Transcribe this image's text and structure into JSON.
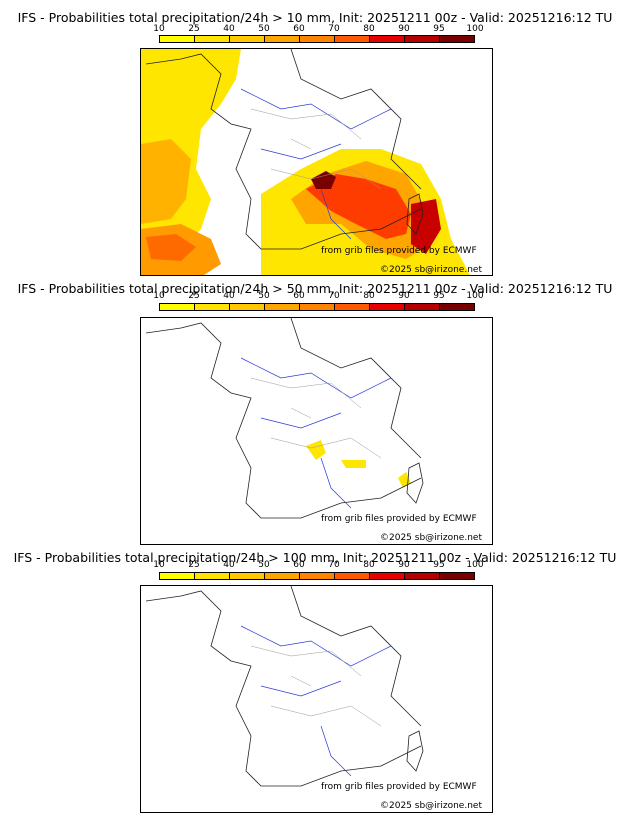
{
  "panels": [
    {
      "title": "IFS - Probabilities total precipitation/24h > 10 mm, Init: 20251211 00z - Valid: 20251216:12 TU",
      "source_note": "from grib files provided by ECMWF",
      "copyright": "©2025 sb@irizone.net"
    },
    {
      "title": "IFS - Probabilities total precipitation/24h > 50 mm, Init: 20251211 00z - Valid: 20251216:12 TU",
      "source_note": "from grib files provided by ECMWF",
      "copyright": "©2025 sb@irizone.net"
    },
    {
      "title": "IFS - Probabilities total precipitation/24h > 100 mm, Init: 20251211 00z - Valid: 20251216:12 TU",
      "source_note": "from grib files provided by ECMWF",
      "copyright": "©2025 sb@irizone.net"
    }
  ],
  "colorbar": {
    "ticks": [
      "10",
      "25",
      "40",
      "50",
      "60",
      "70",
      "80",
      "90",
      "95",
      "100"
    ],
    "colors": [
      "#ffff00",
      "#ffe400",
      "#ffc800",
      "#ffa500",
      "#ff8200",
      "#ff5a00",
      "#e60000",
      "#b40000",
      "#780000"
    ]
  }
}
